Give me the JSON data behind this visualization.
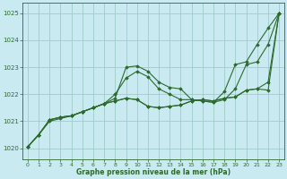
{
  "title": "Graphe pression niveau de la mer (hPa)",
  "background_color": "#c8eaf0",
  "grid_color": "#a0ccc8",
  "line_color": "#2d6a2d",
  "ylim": [
    1019.6,
    1025.4
  ],
  "xlim": [
    -0.5,
    23.5
  ],
  "yticks": [
    1020,
    1021,
    1022,
    1023,
    1024,
    1025
  ],
  "xticks": [
    0,
    1,
    2,
    3,
    4,
    5,
    6,
    7,
    8,
    9,
    10,
    11,
    12,
    13,
    14,
    15,
    16,
    17,
    18,
    19,
    20,
    21,
    22,
    23
  ],
  "series": [
    [
      1020.05,
      1020.5,
      1021.0,
      1021.1,
      1021.2,
      1021.35,
      1021.5,
      1021.65,
      1021.85,
      1023.0,
      1023.05,
      1022.85,
      1022.45,
      1022.25,
      1022.2,
      1021.8,
      1021.75,
      1021.7,
      1022.1,
      1023.1,
      1023.2,
      1023.85,
      1024.45,
      1025.0
    ],
    [
      1020.05,
      1020.5,
      1021.05,
      1021.15,
      1021.2,
      1021.35,
      1021.5,
      1021.65,
      1022.0,
      1022.6,
      1022.85,
      1022.65,
      1022.2,
      1022.0,
      1021.8,
      1021.8,
      1021.75,
      1021.7,
      1021.8,
      1022.2,
      1023.1,
      1023.2,
      1023.85,
      1025.0
    ],
    [
      1020.05,
      1020.5,
      1021.05,
      1021.15,
      1021.2,
      1021.35,
      1021.5,
      1021.65,
      1021.75,
      1021.85,
      1021.8,
      1021.55,
      1021.5,
      1021.55,
      1021.6,
      1021.75,
      1021.8,
      1021.75,
      1021.85,
      1021.9,
      1022.15,
      1022.2,
      1022.15,
      1025.0
    ],
    [
      1020.05,
      1020.5,
      1021.05,
      1021.15,
      1021.2,
      1021.35,
      1021.5,
      1021.65,
      1021.75,
      1021.85,
      1021.8,
      1021.55,
      1021.5,
      1021.55,
      1021.6,
      1021.75,
      1021.8,
      1021.75,
      1021.85,
      1021.9,
      1022.15,
      1022.2,
      1022.45,
      1025.0
    ]
  ]
}
